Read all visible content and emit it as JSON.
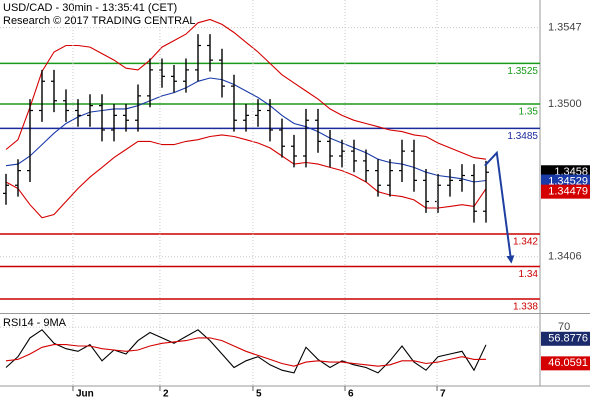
{
  "chart_data": [
    {
      "type": "ohlc",
      "title": "USD/CAD - 30min - 13:35:41 (CET)",
      "subtitle": "Research © 2017 TRADING CENTRAL",
      "x": [
        0,
        1,
        2,
        3,
        4,
        5,
        6,
        7,
        8,
        9,
        10,
        11,
        12,
        13,
        14,
        15,
        16,
        17,
        18,
        19,
        20,
        21,
        22,
        23,
        24,
        25,
        26,
        27,
        28,
        29,
        30,
        31,
        32,
        33,
        34,
        35,
        36,
        37,
        38,
        39,
        40
      ],
      "ohlc": [
        [
          1.3445,
          1.3457,
          1.3438,
          1.345
        ],
        [
          1.345,
          1.3466,
          1.3443,
          1.3459
        ],
        [
          1.3459,
          1.3503,
          1.3452,
          1.3496
        ],
        [
          1.3496,
          1.3521,
          1.3489,
          1.3514
        ],
        [
          1.3514,
          1.3521,
          1.3495,
          1.3502
        ],
        [
          1.3502,
          1.3509,
          1.3489,
          1.3496
        ],
        [
          1.3496,
          1.3503,
          1.3486,
          1.3493
        ],
        [
          1.3493,
          1.3506,
          1.3486,
          1.3499
        ],
        [
          1.3499,
          1.3506,
          1.3477,
          1.3484
        ],
        [
          1.3484,
          1.35,
          1.3477,
          1.3493
        ],
        [
          1.3493,
          1.35,
          1.3483,
          1.349
        ],
        [
          1.349,
          1.3512,
          1.3483,
          1.3505
        ],
        [
          1.3505,
          1.3528,
          1.3498,
          1.3521
        ],
        [
          1.3521,
          1.3528,
          1.351,
          1.3517
        ],
        [
          1.3517,
          1.3524,
          1.3507,
          1.3514
        ],
        [
          1.3514,
          1.3528,
          1.3507,
          1.3521
        ],
        [
          1.3521,
          1.3543,
          1.3514,
          1.3536
        ],
        [
          1.3536,
          1.3543,
          1.352,
          1.3527
        ],
        [
          1.3527,
          1.3534,
          1.3504,
          1.3511
        ],
        [
          1.3511,
          1.3518,
          1.3483,
          1.349
        ],
        [
          1.349,
          1.35,
          1.3483,
          1.3493
        ],
        [
          1.3493,
          1.3503,
          1.3486,
          1.3496
        ],
        [
          1.3496,
          1.3503,
          1.3477,
          1.3484
        ],
        [
          1.3484,
          1.3491,
          1.3467,
          1.3474
        ],
        [
          1.3474,
          1.3481,
          1.3461,
          1.3468
        ],
        [
          1.3468,
          1.3497,
          1.3461,
          1.349
        ],
        [
          1.349,
          1.3497,
          1.347,
          1.3477
        ],
        [
          1.3477,
          1.3484,
          1.3461,
          1.3468
        ],
        [
          1.3468,
          1.3478,
          1.3461,
          1.3471
        ],
        [
          1.3471,
          1.3478,
          1.3458,
          1.3465
        ],
        [
          1.3465,
          1.3472,
          1.3452,
          1.3459
        ],
        [
          1.3459,
          1.3466,
          1.3443,
          1.345
        ],
        [
          1.345,
          1.3466,
          1.3443,
          1.3459
        ],
        [
          1.3459,
          1.3478,
          1.3452,
          1.3471
        ],
        [
          1.3471,
          1.3478,
          1.3446,
          1.3453
        ],
        [
          1.3453,
          1.346,
          1.3433,
          1.344
        ],
        [
          1.344,
          1.3457,
          1.3433,
          1.345
        ],
        [
          1.345,
          1.346,
          1.3443,
          1.3453
        ],
        [
          1.3453,
          1.3463,
          1.3446,
          1.3456
        ],
        [
          1.3456,
          1.3463,
          1.3427,
          1.3434
        ],
        [
          1.3434,
          1.3465,
          1.3427,
          1.3458
        ]
      ],
      "bar_color": "#000000",
      "series": [
        {
          "name": "upper",
          "color": "#d40000",
          "values": [
            1.3472,
            1.3478,
            1.3498,
            1.352,
            1.3532,
            1.3536,
            1.3536,
            1.3535,
            1.3531,
            1.3527,
            1.3522,
            1.3521,
            1.3527,
            1.3535,
            1.3539,
            1.3543,
            1.355,
            1.3552,
            1.3549,
            1.3544,
            1.3538,
            1.3532,
            1.3525,
            1.3518,
            1.3513,
            1.3508,
            1.3503,
            1.3497,
            1.3493,
            1.349,
            1.3488,
            1.3486,
            1.3484,
            1.3483,
            1.3481,
            1.348,
            1.3476,
            1.3473,
            1.347,
            1.3467,
            1.3466
          ]
        },
        {
          "name": "middle",
          "color": "#1a3aa8",
          "values": [
            1.3462,
            1.3463,
            1.3468,
            1.3475,
            1.3482,
            1.3488,
            1.3492,
            1.3495,
            1.3496,
            1.3497,
            1.3497,
            1.3499,
            1.3502,
            1.3505,
            1.3507,
            1.351,
            1.3514,
            1.3516,
            1.3515,
            1.3512,
            1.3508,
            1.3504,
            1.3499,
            1.3493,
            1.3488,
            1.3486,
            1.3483,
            1.3479,
            1.3476,
            1.3473,
            1.347,
            1.3466,
            1.3464,
            1.3463,
            1.3461,
            1.3458,
            1.3456,
            1.3455,
            1.3454,
            1.3452,
            1.34529
          ]
        },
        {
          "name": "lower",
          "color": "#d40000",
          "values": [
            1.3452,
            1.3448,
            1.3438,
            1.343,
            1.3432,
            1.344,
            1.3448,
            1.3455,
            1.3461,
            1.3467,
            1.3472,
            1.3477,
            1.3477,
            1.3475,
            1.3475,
            1.3477,
            1.3478,
            1.348,
            1.3481,
            1.348,
            1.3478,
            1.3476,
            1.3473,
            1.3468,
            1.3463,
            1.3464,
            1.3463,
            1.3461,
            1.3459,
            1.3456,
            1.3452,
            1.3446,
            1.3444,
            1.3443,
            1.3441,
            1.3436,
            1.3436,
            1.3437,
            1.3438,
            1.3437,
            1.34479
          ]
        }
      ],
      "levels": [
        {
          "value": 1.3525,
          "color": "#1a9a1a"
        },
        {
          "value": 1.35,
          "color": "#1a9a1a"
        },
        {
          "value": 1.3485,
          "color": "#1a2a9a"
        },
        {
          "value": 1.342,
          "color": "#cc0000"
        },
        {
          "value": 1.34,
          "color": "#cc0000"
        },
        {
          "value": 1.338,
          "color": "#cc0000"
        }
      ],
      "forecast": {
        "color": "#1f3fa0",
        "x": [
          39.9,
          40.9,
          42.1
        ],
        "y": [
          1.3462,
          1.347,
          1.3403
        ]
      },
      "xlim": [
        -0.5,
        44.5
      ],
      "ylim": [
        1.3372,
        1.3564
      ],
      "yticks": [
        1.3547,
        {
          "value": 1.35,
          "label": "1.3500"
        },
        1.3406
      ],
      "grid": true
    },
    {
      "type": "line",
      "title": "RSI14 - 9MA",
      "x": [
        0,
        1,
        2,
        3,
        4,
        5,
        6,
        7,
        8,
        9,
        10,
        11,
        12,
        13,
        14,
        15,
        16,
        17,
        18,
        19,
        20,
        21,
        22,
        23,
        24,
        25,
        26,
        27,
        28,
        29,
        30,
        31,
        32,
        33,
        34,
        35,
        36,
        37,
        38,
        39,
        40
      ],
      "series": [
        {
          "name": "RSI14",
          "color": "#000000",
          "values": [
            40,
            48,
            62,
            68,
            58,
            54,
            52,
            57,
            45,
            53,
            50,
            60,
            66,
            62,
            58,
            63,
            68,
            60,
            50,
            40,
            45,
            48,
            42,
            38,
            36,
            55,
            46,
            40,
            45,
            42,
            40,
            36,
            45,
            56,
            44,
            38,
            48,
            50,
            52,
            38,
            56.8776
          ]
        },
        {
          "name": "9MA",
          "color": "#d40000",
          "values": [
            45,
            46,
            50,
            55,
            57,
            57,
            56,
            56,
            54,
            53,
            52,
            53,
            56,
            58,
            59,
            60,
            62,
            62,
            60,
            56,
            52,
            49,
            46,
            43,
            41,
            44,
            45,
            44,
            44,
            43,
            42,
            41,
            42,
            45,
            45,
            43,
            44,
            46,
            48,
            46,
            46.0591
          ]
        }
      ],
      "xlim": [
        -0.5,
        44.5
      ],
      "ylim": [
        27,
        79
      ],
      "yticks": [
        70
      ],
      "xticks": [
        {
          "value": 5.58,
          "label": "Jun"
        },
        {
          "value": 12.83,
          "label": "2"
        },
        {
          "value": 20.58,
          "label": "5"
        },
        {
          "value": 28.25,
          "label": "6"
        },
        {
          "value": 35.92,
          "label": "7"
        }
      ],
      "grid": true
    }
  ]
}
